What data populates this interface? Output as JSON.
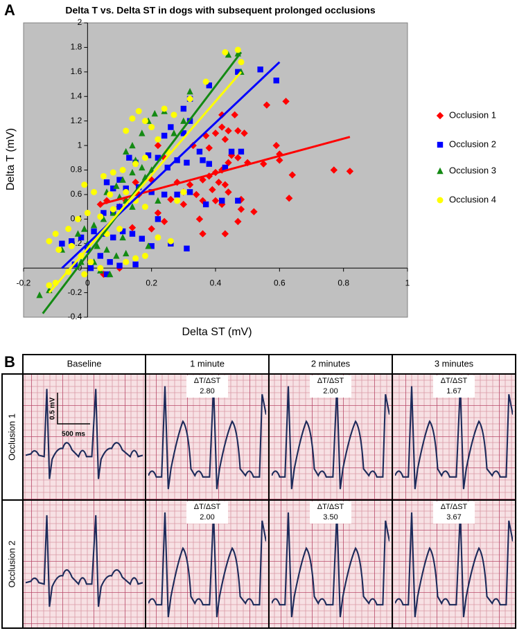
{
  "chart_data": {
    "type": "scatter",
    "title": "Delta T vs. Delta ST in dogs with subsequent prolonged occlusions",
    "x_label": "Delta ST (mV)",
    "y_label": "Delta T (mV)",
    "xlim": [
      -0.2,
      1
    ],
    "xticks": [
      -0.2,
      0,
      0.2,
      0.4,
      0.6,
      0.8,
      1
    ],
    "ylim": [
      -0.4,
      2
    ],
    "yticks": [
      -0.4,
      -0.2,
      0,
      0.2,
      0.4,
      0.6,
      0.8,
      1,
      1.2,
      1.4,
      1.6,
      1.8,
      2
    ],
    "grid": false,
    "legend": "right",
    "series": [
      {
        "name": "Occlusion 1",
        "color": "#ff0000",
        "marker": "diamond",
        "x": [
          0.42,
          0.56,
          0.62,
          0.42,
          0.46,
          0.44,
          0.47,
          0.49,
          0.43,
          0.4,
          0.37,
          0.38,
          0.33,
          0.45,
          0.47,
          0.44,
          0.5,
          0.55,
          0.59,
          0.6,
          0.6,
          0.64,
          0.63,
          0.77,
          0.82,
          0.42,
          0.4,
          0.38,
          0.36,
          0.41,
          0.43,
          0.39,
          0.34,
          0.36,
          0.4,
          0.42,
          0.3,
          0.32,
          0.28,
          0.26,
          0.3,
          0.44,
          0.48,
          0.52,
          0.48,
          0.35,
          0.36,
          0.43,
          0.47,
          0.24,
          0.22,
          0.16,
          0.12,
          0.04,
          0.06,
          0.1,
          0.15,
          0.2,
          0.24,
          0.22,
          0.2,
          0.1,
          0.05,
          0.14
        ],
        "y": [
          1.15,
          1.33,
          1.36,
          1.25,
          1.25,
          1.12,
          1.12,
          1.1,
          1.05,
          1.1,
          1.08,
          0.98,
          1.0,
          0.92,
          0.9,
          0.86,
          0.86,
          0.85,
          1.0,
          0.93,
          0.88,
          0.76,
          0.57,
          0.8,
          0.79,
          0.8,
          0.78,
          0.75,
          0.72,
          0.7,
          0.68,
          0.64,
          0.6,
          0.55,
          0.55,
          0.52,
          0.62,
          0.68,
          0.7,
          0.56,
          0.52,
          0.62,
          0.48,
          0.46,
          0.56,
          0.4,
          0.28,
          0.28,
          0.38,
          0.38,
          0.45,
          0.6,
          0.55,
          0.52,
          0.55,
          0.5,
          0.7,
          0.72,
          0.9,
          1.0,
          0.32,
          0.0,
          -0.05,
          0.33
        ],
        "trendline": {
          "x": [
            0.04,
            0.82
          ],
          "y": [
            0.52,
            1.07
          ]
        }
      },
      {
        "name": "Occlusion 2",
        "color": "#0000ff",
        "marker": "square",
        "x": [
          0.54,
          0.59,
          0.47,
          0.38,
          0.32,
          0.3,
          0.32,
          0.26,
          0.24,
          0.3,
          0.35,
          0.36,
          0.38,
          0.31,
          0.28,
          0.25,
          0.22,
          0.19,
          0.15,
          0.13,
          0.1,
          0.08,
          0.06,
          0.12,
          0.16,
          0.2,
          0.24,
          0.28,
          0.32,
          0.45,
          0.48,
          0.43,
          0.08,
          0.05,
          0.1,
          0.02,
          0.05,
          0.08,
          0.11,
          0.14,
          0.17,
          -0.02,
          -0.05,
          -0.08,
          0.0,
          0.04,
          0.07,
          0.1,
          0.15,
          -0.04,
          0.01,
          0.2,
          0.22,
          0.26,
          0.31,
          0.37,
          0.42,
          0.47,
          0.06
        ],
        "y": [
          1.62,
          1.53,
          1.6,
          1.49,
          1.38,
          1.3,
          1.2,
          1.15,
          1.08,
          1.1,
          0.95,
          0.88,
          0.85,
          0.86,
          0.88,
          0.82,
          0.9,
          0.92,
          0.86,
          0.9,
          0.72,
          0.65,
          0.7,
          0.65,
          0.66,
          0.62,
          0.6,
          0.6,
          0.62,
          0.95,
          0.95,
          0.82,
          0.46,
          0.45,
          0.5,
          0.3,
          0.28,
          0.25,
          0.3,
          0.28,
          0.24,
          0.25,
          0.22,
          0.2,
          0.15,
          0.1,
          0.05,
          0.02,
          0.03,
          0.03,
          0.0,
          0.18,
          0.4,
          0.2,
          0.16,
          0.52,
          0.55,
          0.55,
          -0.05
        ],
        "trendline": {
          "x": [
            -0.08,
            0.6
          ],
          "y": [
            0.0,
            1.68
          ]
        }
      },
      {
        "name": "Occlusion 3",
        "color": "#138a13",
        "marker": "triangle",
        "x": [
          0.47,
          0.44,
          0.48,
          0.32,
          0.24,
          0.21,
          0.19,
          0.17,
          0.14,
          0.12,
          0.15,
          0.17,
          0.2,
          0.18,
          0.14,
          0.11,
          0.09,
          0.06,
          0.1,
          0.12,
          0.14,
          0.08,
          0.05,
          0.02,
          -0.01,
          -0.03,
          0.0,
          0.03,
          0.06,
          0.09,
          0.12,
          0.02,
          -0.02,
          0.04,
          0.07,
          -0.12,
          -0.15,
          -0.08,
          0.27,
          0.3,
          0.19,
          0.22,
          0.11
        ],
        "y": [
          1.75,
          1.74,
          1.6,
          1.44,
          1.28,
          1.26,
          1.2,
          1.1,
          1.0,
          0.95,
          0.88,
          0.82,
          0.8,
          0.74,
          0.78,
          0.72,
          0.67,
          0.62,
          0.58,
          0.55,
          0.5,
          0.45,
          0.4,
          0.35,
          0.32,
          0.28,
          0.2,
          0.18,
          0.15,
          0.1,
          0.12,
          0.05,
          0.05,
          -0.02,
          -0.05,
          -0.18,
          -0.22,
          0.15,
          1.1,
          1.2,
          0.18,
          0.55,
          0.25
        ],
        "trendline": {
          "x": [
            -0.14,
            0.48
          ],
          "y": [
            -0.37,
            1.76
          ]
        }
      },
      {
        "name": "Occlusion 4",
        "color": "#ffff00",
        "marker": "circle",
        "x": [
          0.47,
          0.43,
          0.48,
          0.37,
          0.32,
          0.24,
          0.16,
          0.18,
          0.14,
          0.12,
          0.2,
          0.27,
          0.22,
          0.25,
          0.18,
          0.15,
          0.11,
          0.08,
          0.05,
          -0.01,
          0.02,
          0.07,
          0.12,
          0.15,
          0.18,
          0.08,
          0.04,
          0.0,
          -0.03,
          -0.06,
          -0.1,
          -0.12,
          -0.09,
          -0.05,
          -0.02,
          0.01,
          0.04,
          -0.01,
          -0.06,
          -0.1,
          -0.12,
          0.12,
          0.15,
          0.18,
          0.22,
          0.26,
          0.3,
          0.28,
          0.1,
          0.06
        ],
        "y": [
          1.78,
          1.76,
          1.68,
          1.52,
          1.38,
          1.3,
          1.28,
          1.2,
          1.22,
          1.12,
          1.15,
          1.25,
          1.05,
          0.95,
          0.9,
          0.85,
          0.8,
          0.78,
          0.75,
          0.68,
          0.62,
          0.6,
          0.62,
          0.55,
          0.5,
          0.48,
          0.42,
          0.45,
          0.4,
          0.32,
          0.28,
          0.22,
          0.15,
          0.18,
          0.1,
          0.05,
          0.0,
          -0.05,
          -0.03,
          -0.12,
          -0.14,
          0.05,
          0.08,
          0.1,
          0.25,
          0.22,
          0.62,
          0.55,
          0.32,
          0.28
        ],
        "trendline": {
          "x": [
            -0.12,
            0.48
          ],
          "y": [
            -0.2,
            1.6
          ]
        }
      }
    ]
  },
  "panel_labels": [
    "A",
    "B"
  ],
  "ecg_table": {
    "columns": [
      "Baseline",
      "1 minute",
      "2 minutes",
      "3 minutes"
    ],
    "ratio_label": "ΔT/ΔST",
    "scale_labels": [
      "0.5 mV",
      "500 ms"
    ],
    "rows": [
      {
        "label": "Occlusion 1",
        "ratios": [
          "2.80",
          "2.00",
          "1.67"
        ]
      },
      {
        "label": "Occlusion 2",
        "ratios": [
          "2.00",
          "3.50",
          "3.67"
        ]
      }
    ]
  }
}
